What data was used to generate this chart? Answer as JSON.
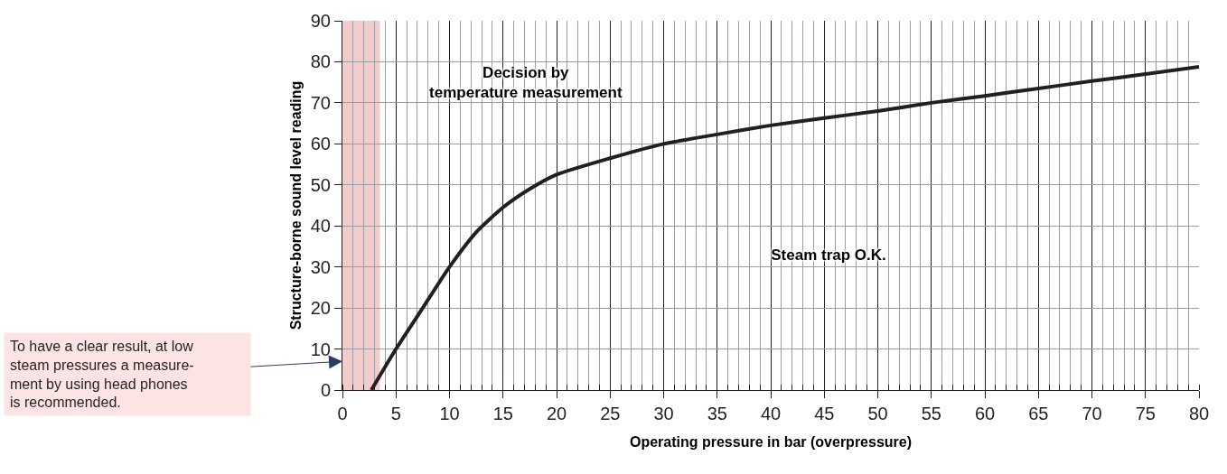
{
  "chart_data": {
    "type": "line",
    "xlabel": "Operating pressure in bar (overpressure)",
    "ylabel": "Structure-borne sound level reading",
    "x": [
      2.7,
      5,
      7.5,
      10,
      12.5,
      15,
      17.5,
      20,
      25,
      30,
      35,
      40,
      45,
      50,
      55,
      60,
      65,
      70,
      75,
      80
    ],
    "series": [
      {
        "color": "#231f20",
        "values": [
          0,
          10,
          20,
          30,
          38.5,
          44.5,
          49,
          52.5,
          56.5,
          60,
          62.3,
          64.5,
          66.3,
          68,
          70,
          71.7,
          73.5,
          75.3,
          77,
          78.8
        ]
      }
    ],
    "xlim": [
      0,
      80
    ],
    "xticks": [
      0,
      5,
      10,
      15,
      20,
      25,
      30,
      35,
      40,
      45,
      50,
      55,
      60,
      65,
      70,
      75,
      80
    ],
    "ylim": [
      0,
      90
    ],
    "yticks": [
      0,
      10,
      20,
      30,
      40,
      50,
      60,
      70,
      80,
      90
    ],
    "grid": true,
    "marker": "none",
    "line_style": "solid",
    "bands": [
      {
        "axis": "x",
        "from": 0,
        "to": 3.5,
        "color": "#f4cccc"
      }
    ],
    "annotations": [
      "Decision by\ntemperature measurement",
      "Steam trap O.K.",
      "To have a clear result, at low\nsteam pressures a measure-\nment by using head phones\nis recommended."
    ]
  }
}
